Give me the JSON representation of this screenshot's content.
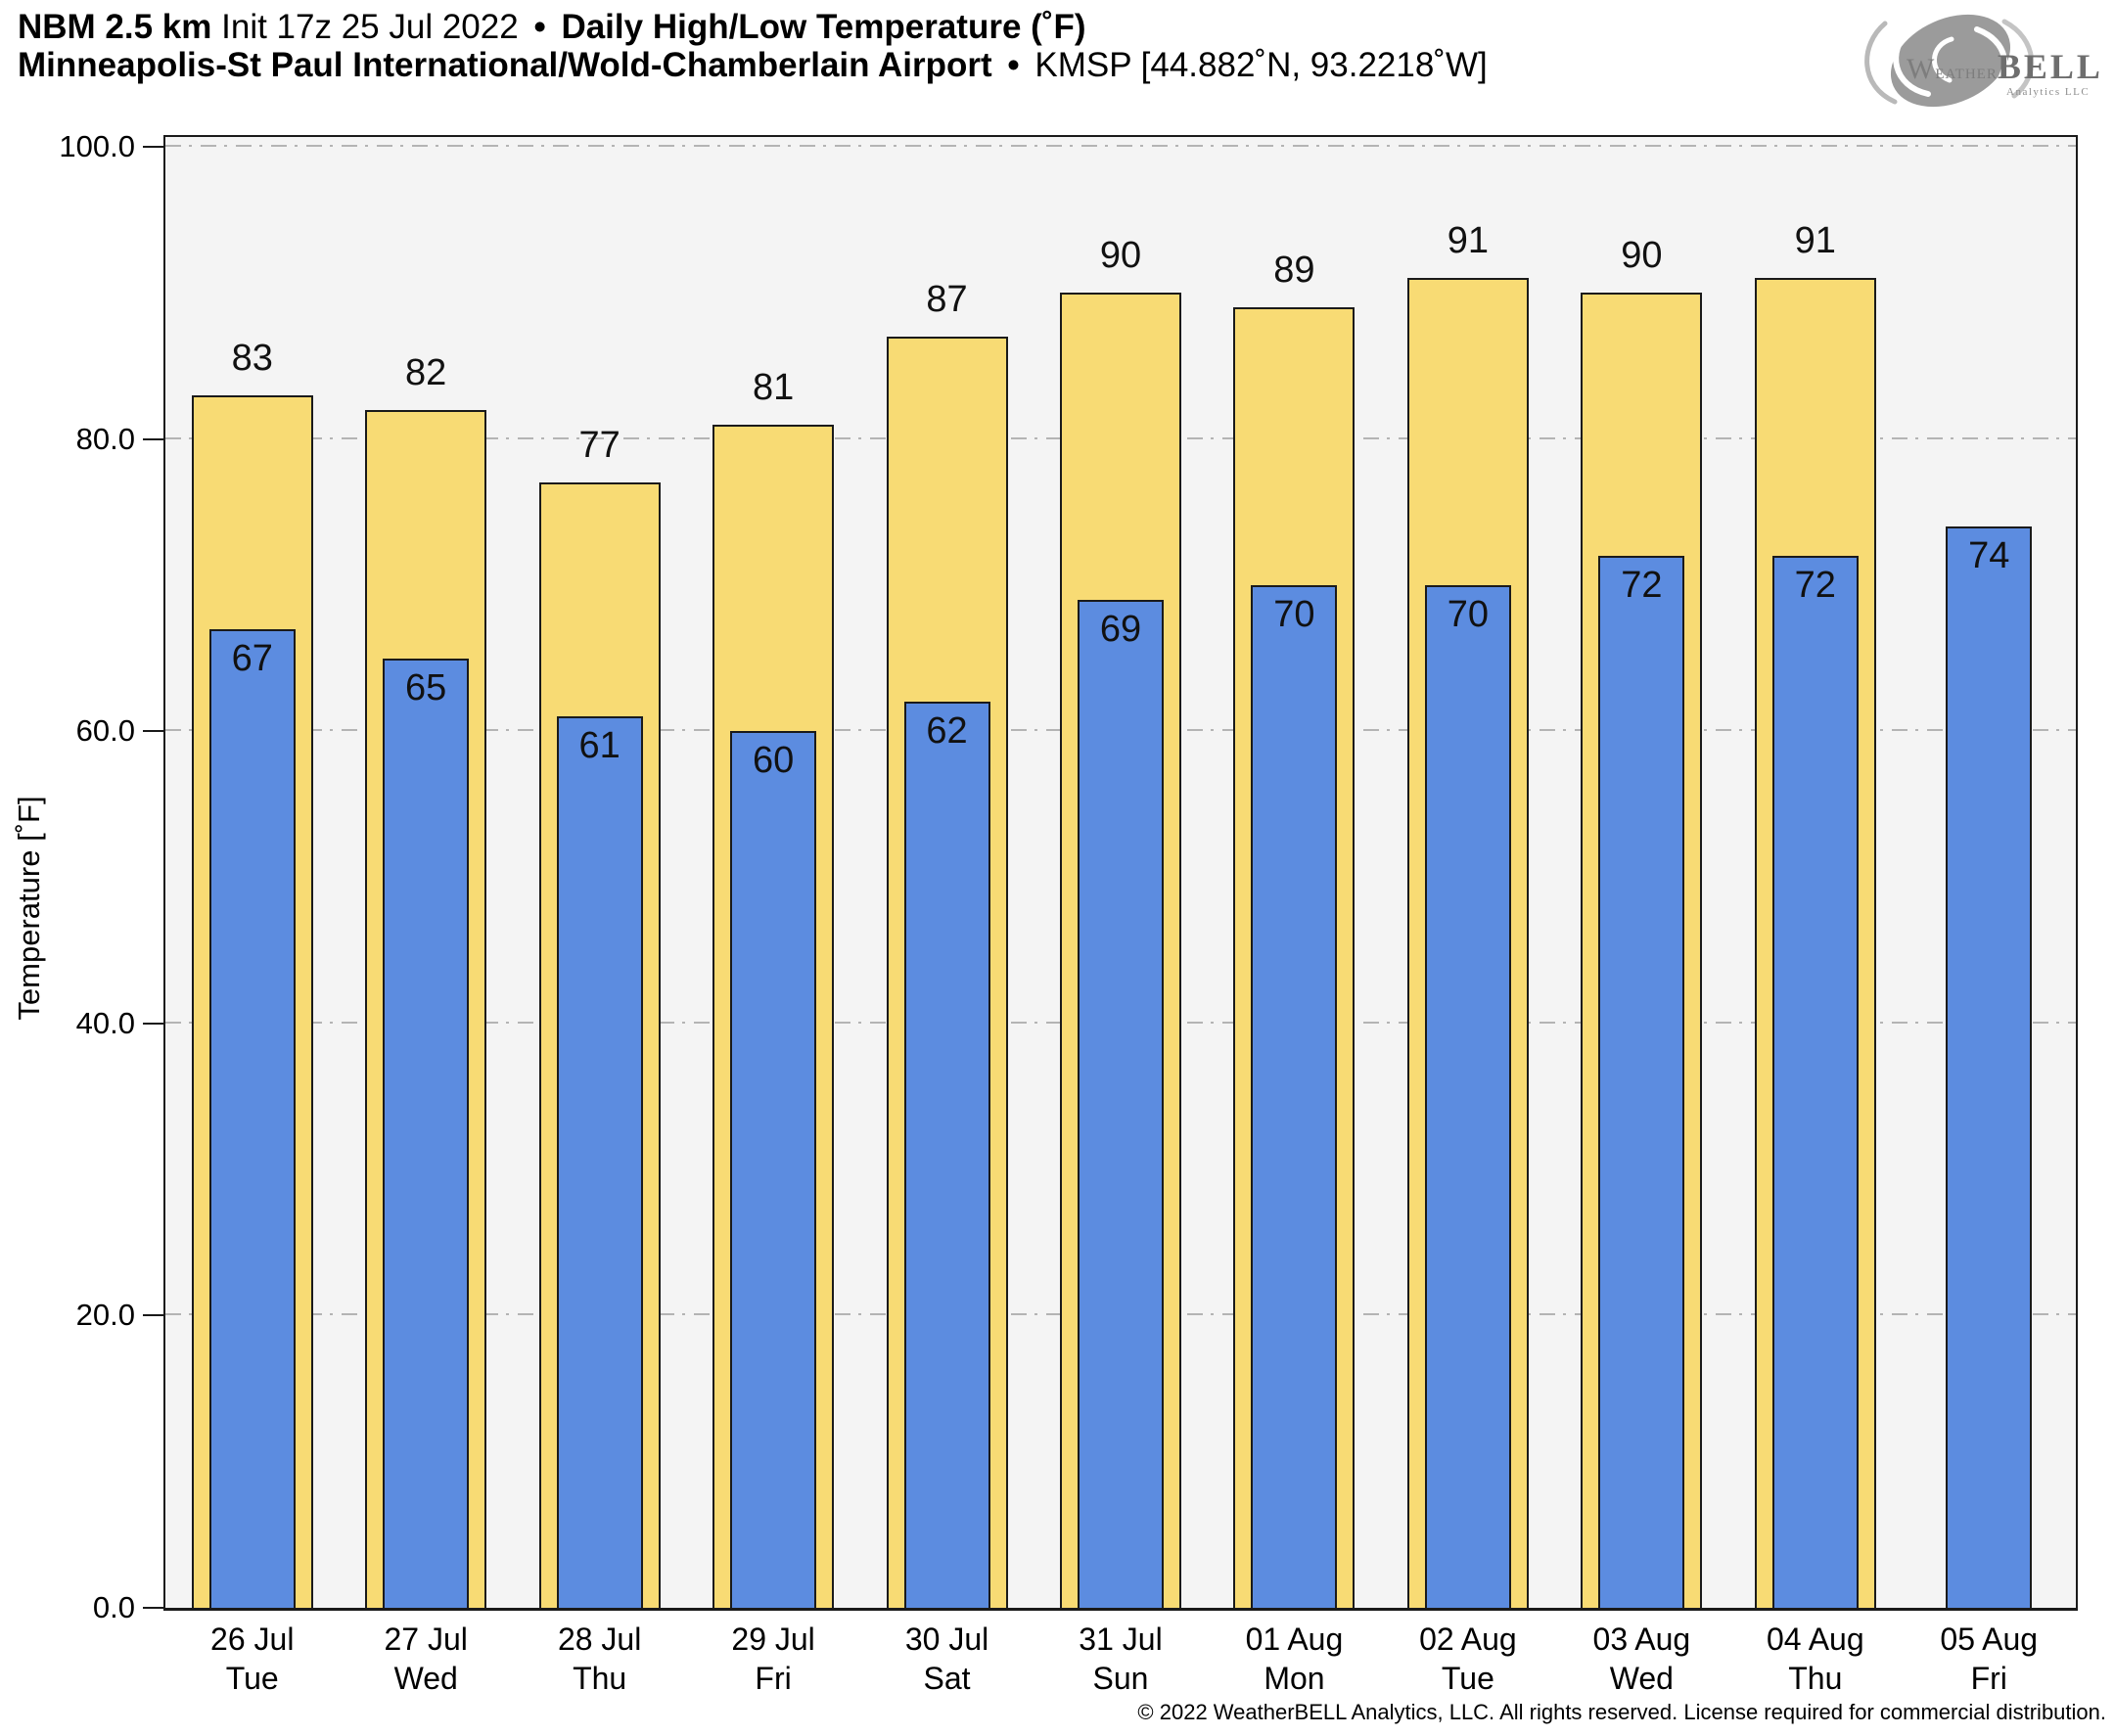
{
  "header": {
    "line1": {
      "model": "NBM 2.5 km",
      "init": "Init 17z 25 Jul 2022",
      "separator": "•",
      "product": "Daily High/Low Temperature (˚F)"
    },
    "line2": {
      "station_name": "Minneapolis-St Paul International/Wold-Chamberlain Airport",
      "separator": "•",
      "station_id": "KMSP [44.882˚N, 93.2218˚W]"
    }
  },
  "logo": {
    "brand_weather": "Weather",
    "brand_bell": "BELL",
    "subtext": "Analytics LLC"
  },
  "chart_data": {
    "type": "bar",
    "title": "NBM 2.5 km Init 17z 25 Jul 2022 • Daily High/Low Temperature (˚F)",
    "subtitle": "Minneapolis-St Paul International/Wold-Chamberlain Airport • KMSP [44.882˚N, 93.2218˚W]",
    "xlabel": "",
    "ylabel": "Temperature [˚F]",
    "ylim": [
      0,
      100
    ],
    "yticks": [
      100,
      80,
      60,
      40,
      20,
      0
    ],
    "ytick_labels": [
      "100.0",
      "80.0",
      "60.0",
      "40.0",
      "20.0",
      "0.0"
    ],
    "grid": "horizontal dash-dot lines every 20 units, drawn behind bars",
    "legend_position": "none",
    "categories": [
      {
        "date": "26 Jul",
        "day": "Tue"
      },
      {
        "date": "27 Jul",
        "day": "Wed"
      },
      {
        "date": "28 Jul",
        "day": "Thu"
      },
      {
        "date": "29 Jul",
        "day": "Fri"
      },
      {
        "date": "30 Jul",
        "day": "Sat"
      },
      {
        "date": "31 Jul",
        "day": "Sun"
      },
      {
        "date": "01 Aug",
        "day": "Mon"
      },
      {
        "date": "02 Aug",
        "day": "Tue"
      },
      {
        "date": "03 Aug",
        "day": "Wed"
      },
      {
        "date": "04 Aug",
        "day": "Thu"
      },
      {
        "date": "05 Aug",
        "day": "Fri"
      }
    ],
    "series": [
      {
        "name": "Daily High",
        "color": "#f8db74",
        "values": [
          83,
          82,
          77,
          81,
          87,
          90,
          89,
          91,
          90,
          91,
          null
        ]
      },
      {
        "name": "Daily Low",
        "color": "#5c8ce0",
        "values": [
          67,
          65,
          61,
          60,
          62,
          69,
          70,
          70,
          72,
          72,
          74
        ]
      }
    ]
  },
  "colors": {
    "high_bar_fill": "#f8db74",
    "low_bar_fill": "#5c8ce0",
    "bar_outline": "#1a1a1a",
    "plot_background": "#f4f4f4",
    "page_background": "#ffffff",
    "gridline": "#b4b4b4",
    "text": "#000000",
    "logo_gray": "#9b9b9b"
  },
  "footer": {
    "copyright": "© 2022 WeatherBELL Analytics, LLC. All rights reserved. License required for commercial distribution."
  }
}
